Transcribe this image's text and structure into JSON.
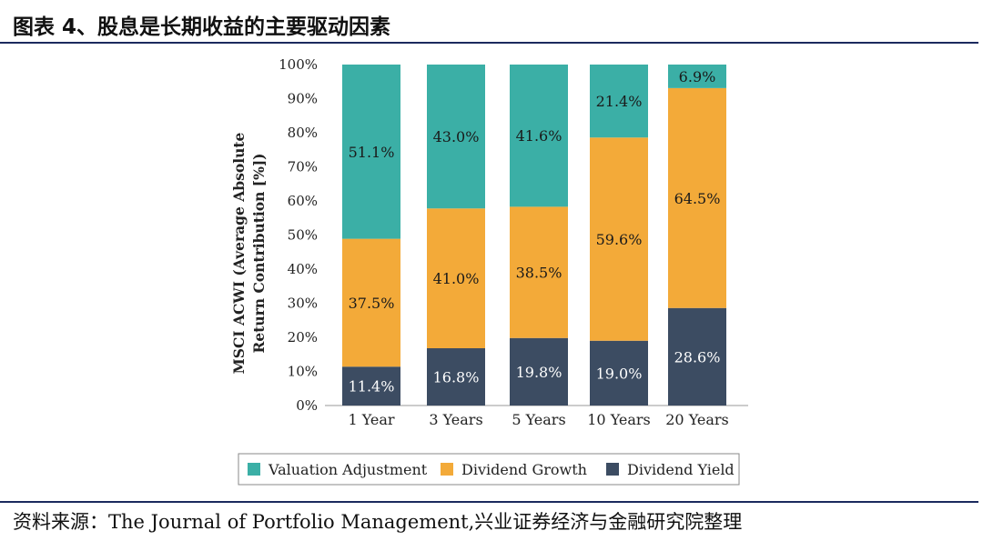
{
  "header": {
    "title": "图表 4、股息是长期收益的主要驱动因素"
  },
  "footer": {
    "source": "资料来源：The Journal of Portfolio Management,兴业证券经济与金融研究院整理"
  },
  "colors": {
    "valuation": "#3bafa6",
    "growth": "#f3aa39",
    "yield": "#3c4c62",
    "rule": "#1b2a5e"
  },
  "chart_data": {
    "type": "bar",
    "stacked": true,
    "ylabel": "MSCI ACWI (Average Absolute Return Contribution [%])",
    "ylabel_lines": [
      "MSCI ACWI (Average Absolute",
      "Return Contribution [%])"
    ],
    "xlabel": "",
    "ylim": [
      0,
      100
    ],
    "yticks": [
      "0%",
      "10%",
      "20%",
      "30%",
      "40%",
      "50%",
      "60%",
      "70%",
      "80%",
      "90%",
      "100%"
    ],
    "categories": [
      "1 Year",
      "3 Years",
      "5 Years",
      "10 Years",
      "20 Years"
    ],
    "series": [
      {
        "name": "Dividend Yield",
        "values": [
          11.4,
          16.8,
          19.8,
          19.0,
          28.6
        ],
        "labels": [
          "11.4%",
          "16.8%",
          "19.8%",
          "19.0%",
          "28.6%"
        ]
      },
      {
        "name": "Dividend Growth",
        "values": [
          37.5,
          41.0,
          38.5,
          59.6,
          64.5
        ],
        "labels": [
          "37.5%",
          "41.0%",
          "38.5%",
          "59.6%",
          "64.5%"
        ]
      },
      {
        "name": "Valuation Adjustment",
        "values": [
          51.1,
          43.0,
          41.6,
          21.4,
          6.9
        ],
        "labels": [
          "51.1%",
          "43.0%",
          "41.6%",
          "21.4%",
          "6.9%"
        ]
      }
    ],
    "legend": {
      "placement": "bottom",
      "entries": [
        "Valuation Adjustment",
        "Dividend Growth",
        "Dividend Yield"
      ]
    },
    "grid": false
  }
}
